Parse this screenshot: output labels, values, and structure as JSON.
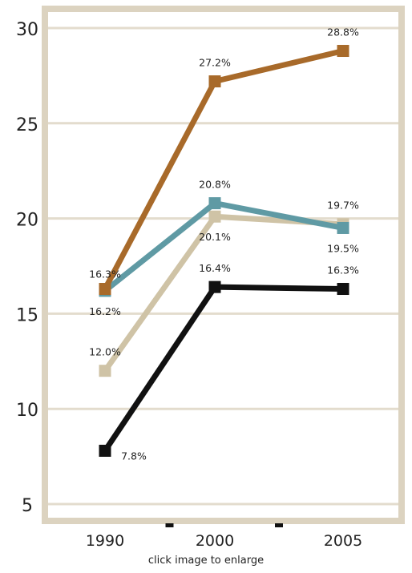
{
  "chart_data": {
    "type": "line",
    "x": [
      "1990",
      "2000",
      "2005"
    ],
    "ylim": [
      5,
      30
    ],
    "yticks": [
      "30",
      "25",
      "20",
      "15",
      "10",
      "5"
    ],
    "grid": true,
    "series": [
      {
        "color": "#a86a2a",
        "values": [
          16.3,
          27.2,
          28.8
        ],
        "labels": [
          "16.3%",
          "27.2%",
          "28.8%"
        ]
      },
      {
        "color": "#5f9aa4",
        "values": [
          16.2,
          20.8,
          19.5
        ],
        "labels": [
          "16.2%",
          "20.8%",
          "19.5%"
        ]
      },
      {
        "color": "#cfc3a6",
        "values": [
          12.0,
          20.1,
          19.7
        ],
        "labels": [
          "12.0%",
          "20.1%",
          "19.7%"
        ]
      },
      {
        "color": "#111111",
        "values": [
          7.8,
          16.4,
          16.3
        ],
        "labels": [
          "7.8%",
          "16.4%",
          "16.3%"
        ]
      }
    ],
    "colors": {
      "frame": "#dcd3c0",
      "grid": "#e3dccd"
    }
  },
  "caption": "click image to enlarge"
}
